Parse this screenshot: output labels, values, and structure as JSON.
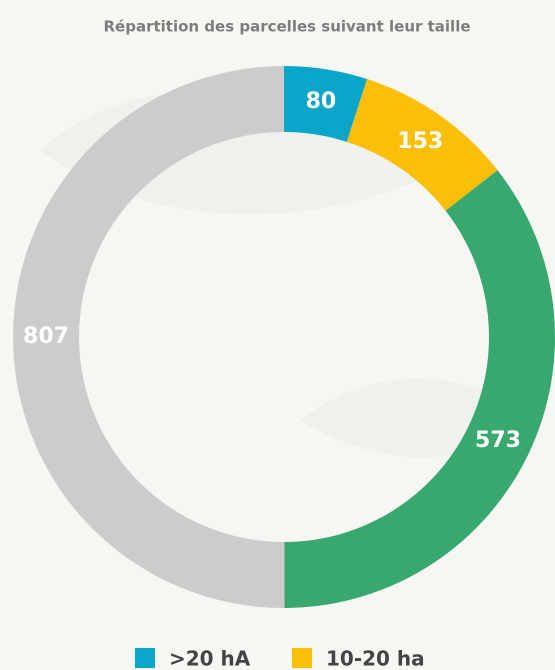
{
  "chart_data": {
    "type": "donut",
    "title": "Répartition des parcelles suivant leur taille",
    "categories": [
      ">20 hA",
      "10-20 ha",
      null,
      null
    ],
    "values": [
      80,
      153,
      573,
      807
    ],
    "colors": [
      "#0aa5c8",
      "#fbbf0a",
      "#38a86e",
      "#cccccc"
    ]
  }
}
